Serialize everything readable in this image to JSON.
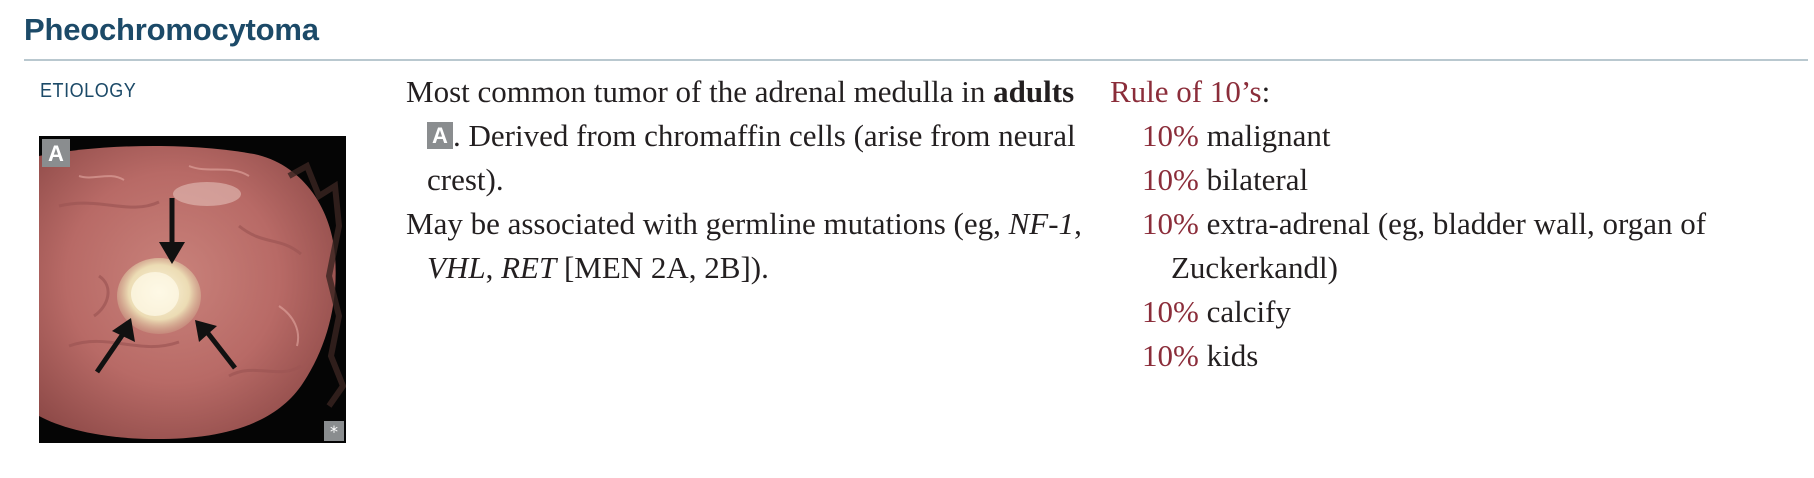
{
  "header": {
    "title": "Pheochromocytoma"
  },
  "section": {
    "label": "ETIOLOGY"
  },
  "figure": {
    "letter": "A",
    "badge": "*"
  },
  "body": {
    "p1_part1": "Most common tumor of the adrenal medulla in ",
    "p1_bold": "adults",
    "p1_box": "A",
    "p1_part2": ". Derived from chromaffin cells (arise from neural crest).",
    "p2_part1": "May be associated with germline mutations (eg, ",
    "p2_gene1": "NF-1",
    "p2_sep1": ", ",
    "p2_gene2": "VHL",
    "p2_sep2": ", ",
    "p2_gene3": "RET",
    "p2_part2": " [MEN 2A, 2B])."
  },
  "rule": {
    "heading": "Rule of 10’s",
    "colon": ":",
    "items": [
      {
        "pct": "10%",
        "text": " malignant"
      },
      {
        "pct": "10%",
        "text": " bilateral"
      },
      {
        "pct": "10%",
        "text": " extra-adrenal (eg, bladder wall, organ of Zuckerkandl)"
      },
      {
        "pct": "10%",
        "text": " calcify"
      },
      {
        "pct": "10%",
        "text": " kids"
      }
    ]
  },
  "colors": {
    "title": "#1c4a68",
    "accent": "#8b2d3a",
    "rule_line": "#b9c8cf",
    "label_box": "#8a8d8f"
  }
}
